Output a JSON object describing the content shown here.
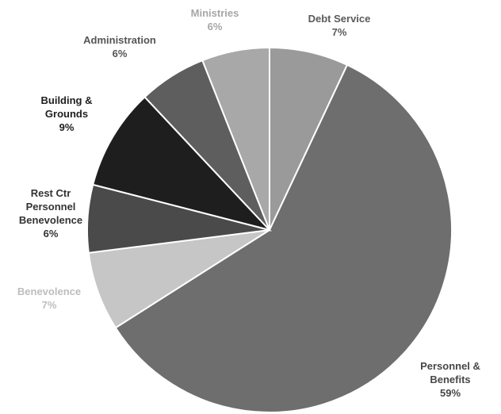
{
  "chart_data": {
    "type": "pie",
    "title": "",
    "slices": [
      {
        "label_lines": [
          "Debt Service"
        ],
        "percent_label": "7%",
        "value": 7,
        "color": "#9a9a9a",
        "label_color": "#5a5a5a"
      },
      {
        "label_lines": [
          "Personnel &",
          "Benefits"
        ],
        "percent_label": "59%",
        "value": 59,
        "color": "#6e6e6e",
        "label_color": "#474747"
      },
      {
        "label_lines": [
          "Benevolence"
        ],
        "percent_label": "7%",
        "value": 7,
        "color": "#c6c6c6",
        "label_color": "#bdbdbd"
      },
      {
        "label_lines": [
          "Rest Ctr",
          "Personnel",
          "Benevolence"
        ],
        "percent_label": "6%",
        "value": 6,
        "color": "#4a4a4a",
        "label_color": "#333333"
      },
      {
        "label_lines": [
          "Building &",
          "Grounds"
        ],
        "percent_label": "9%",
        "value": 9,
        "color": "#1e1e1e",
        "label_color": "#1e1e1e"
      },
      {
        "label_lines": [
          "Administration"
        ],
        "percent_label": "6%",
        "value": 6,
        "color": "#5e5e5e",
        "label_color": "#555555"
      },
      {
        "label_lines": [
          "Ministries"
        ],
        "percent_label": "6%",
        "value": 6,
        "color": "#a8a8a8",
        "label_color": "#a6a6a6"
      }
    ]
  }
}
